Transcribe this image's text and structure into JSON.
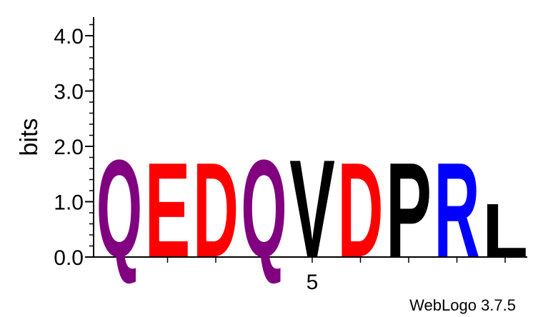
{
  "chart_data": {
    "type": "sequence-logo",
    "ylabel": "bits",
    "ylim": [
      0,
      4.3
    ],
    "yticks": [
      "0.0",
      "1.0",
      "2.0",
      "3.0",
      "4.0"
    ],
    "ytick_values": [
      0,
      1,
      2,
      3,
      4
    ],
    "positions": [
      1,
      2,
      3,
      4,
      5,
      6,
      7,
      8,
      9
    ],
    "xtick_labels": [
      {
        "position": 5,
        "label": "5"
      }
    ],
    "stacks": [
      {
        "position": 1,
        "letter": "Q",
        "bits": 1.75,
        "color": "#800080"
      },
      {
        "position": 2,
        "letter": "E",
        "bits": 1.7,
        "color": "#ff0000"
      },
      {
        "position": 3,
        "letter": "D",
        "bits": 1.7,
        "color": "#ff0000"
      },
      {
        "position": 4,
        "letter": "Q",
        "bits": 1.75,
        "color": "#800080"
      },
      {
        "position": 5,
        "letter": "V",
        "bits": 1.75,
        "color": "#000000"
      },
      {
        "position": 6,
        "letter": "D",
        "bits": 1.7,
        "color": "#ff0000"
      },
      {
        "position": 7,
        "letter": "P",
        "bits": 1.7,
        "color": "#000000"
      },
      {
        "position": 8,
        "letter": "R",
        "bits": 1.7,
        "color": "#0000ff"
      },
      {
        "position": 9,
        "letter": "L",
        "bits": 0.95,
        "color": "#000000"
      }
    ],
    "credit": "WebLogo 3.7.5"
  }
}
